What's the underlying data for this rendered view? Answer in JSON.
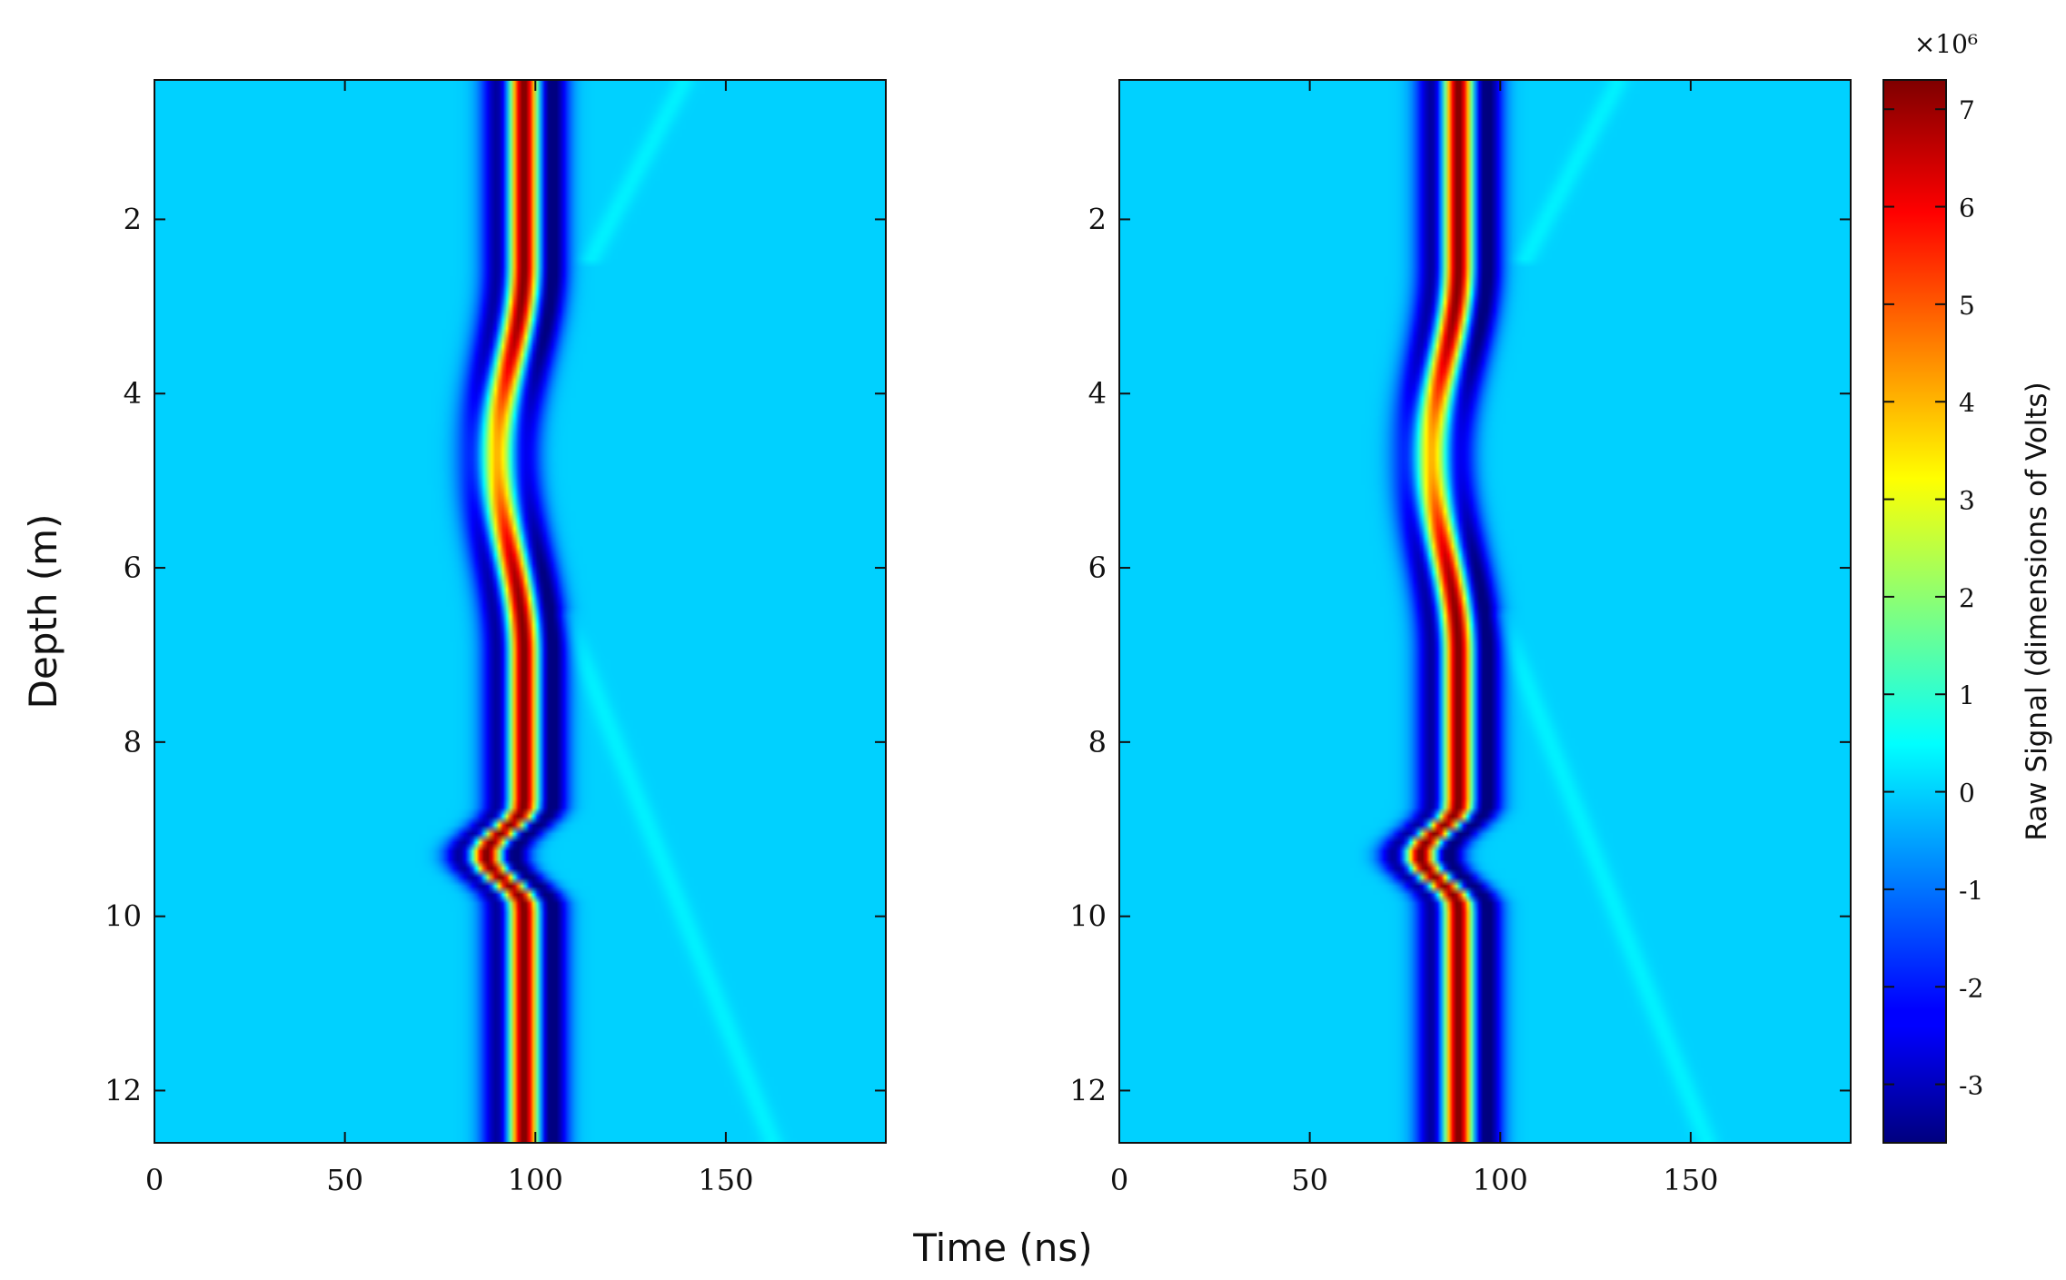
{
  "chart_data": {
    "type": "heatmap",
    "colormap": "jet",
    "panels": [
      {
        "name": "left",
        "pulse_center_ns": 97,
        "scatter_lobe_ns": 106
      },
      {
        "name": "right",
        "pulse_center_ns": 89,
        "scatter_lobe_ns": 98
      }
    ],
    "x_axis": {
      "label": "Time (ns)",
      "range": [
        0,
        192
      ],
      "ticks": [
        0,
        50,
        100,
        150
      ],
      "tick_labels": [
        "0",
        "50",
        "100",
        "150"
      ]
    },
    "y_axis": {
      "label": "Depth (m)",
      "range": [
        0.4,
        12.6
      ],
      "inverted": true,
      "ticks": [
        2,
        4,
        6,
        8,
        10,
        12
      ],
      "tick_labels": [
        "2",
        "4",
        "6",
        "8",
        "10",
        "12"
      ]
    },
    "colorbar": {
      "label": "Raw Signal (dimensions of Volts)",
      "multiplier": "×10⁶",
      "range": [
        -3.6,
        7.3
      ],
      "ticks": [
        -3,
        -2,
        -1,
        0,
        1,
        2,
        3,
        4,
        5,
        6,
        7
      ],
      "tick_labels": [
        "-3",
        "-2",
        "-1",
        "0",
        "1",
        "2",
        "3",
        "4",
        "5",
        "6",
        "7"
      ]
    },
    "features": {
      "main_pulse_depth_profile": [
        {
          "depth": 0.5,
          "shift_ns": 0
        },
        {
          "depth": 2.5,
          "shift_ns": 0
        },
        {
          "depth": 4.7,
          "shift_ns": -7
        },
        {
          "depth": 7.0,
          "shift_ns": 0
        },
        {
          "depth": 8.7,
          "shift_ns": 0
        },
        {
          "depth": 9.3,
          "shift_ns": -10
        },
        {
          "depth": 9.9,
          "shift_ns": 0
        },
        {
          "depth": 12.6,
          "shift_ns": 0
        }
      ],
      "pulse_amplitude_peak": 7.0,
      "pulse_amplitude_trough": -3.6
    }
  }
}
